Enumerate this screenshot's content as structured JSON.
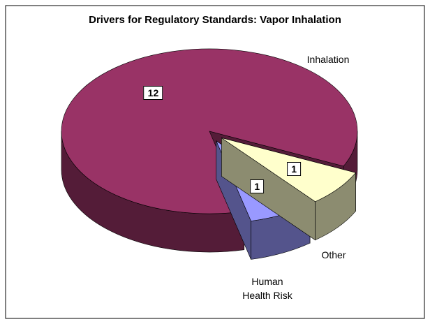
{
  "chart_data": {
    "type": "pie3d",
    "title": "Drivers for Regulatory Standards:  Vapor Inhalation",
    "categories": [
      "Other",
      "Human Health Risk",
      "Inhalation"
    ],
    "values": [
      1,
      1,
      12
    ],
    "colors": [
      "#ffffcc",
      "#9999ff",
      "#993366"
    ],
    "exploded": [
      true,
      true,
      false
    ]
  }
}
